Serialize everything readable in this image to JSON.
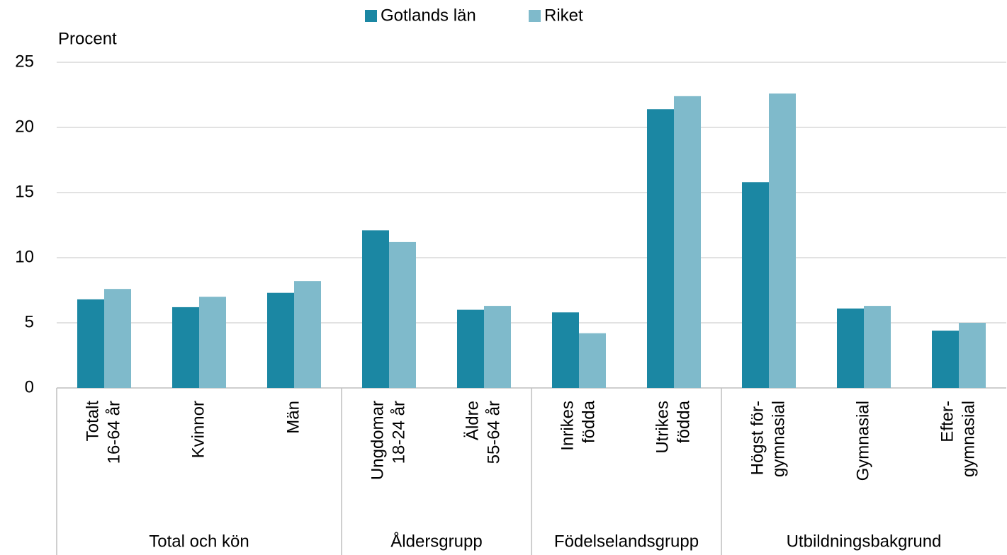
{
  "chart_data": {
    "type": "bar",
    "y_axis_label": "Procent",
    "groups": [
      {
        "name": "Total och kön",
        "categories": [
          [
            "Totalt",
            "16-64 år"
          ],
          [
            "Kvinnor"
          ],
          [
            "Män"
          ]
        ]
      },
      {
        "name": "Åldersgrupp",
        "categories": [
          [
            "Ungdomar",
            "18-24 år"
          ],
          [
            "Äldre",
            "55-64 år"
          ]
        ]
      },
      {
        "name": "Födelselandsgrupp",
        "categories": [
          [
            "Inrikes",
            "födda"
          ],
          [
            "Utrikes",
            "födda"
          ]
        ]
      },
      {
        "name": "Utbildningsbakgrund",
        "categories": [
          [
            "Högst för-",
            "gymnasial"
          ],
          [
            "Gymnasial"
          ],
          [
            "Efter-",
            "gymnasial"
          ]
        ]
      }
    ],
    "series": [
      {
        "name": "Gotlands län",
        "color": "#1b87a3",
        "values": [
          6.8,
          6.2,
          7.3,
          12.1,
          6.0,
          5.8,
          21.4,
          15.8,
          6.1,
          4.4
        ]
      },
      {
        "name": "Riket",
        "color": "#7fbacb",
        "values": [
          7.6,
          7.0,
          8.2,
          11.2,
          6.3,
          4.2,
          22.4,
          22.6,
          6.3,
          5.0
        ]
      }
    ],
    "ylim": [
      0,
      25
    ],
    "yticks": [
      0,
      5,
      10,
      15,
      20,
      25
    ],
    "grid": true,
    "legend": "top"
  }
}
